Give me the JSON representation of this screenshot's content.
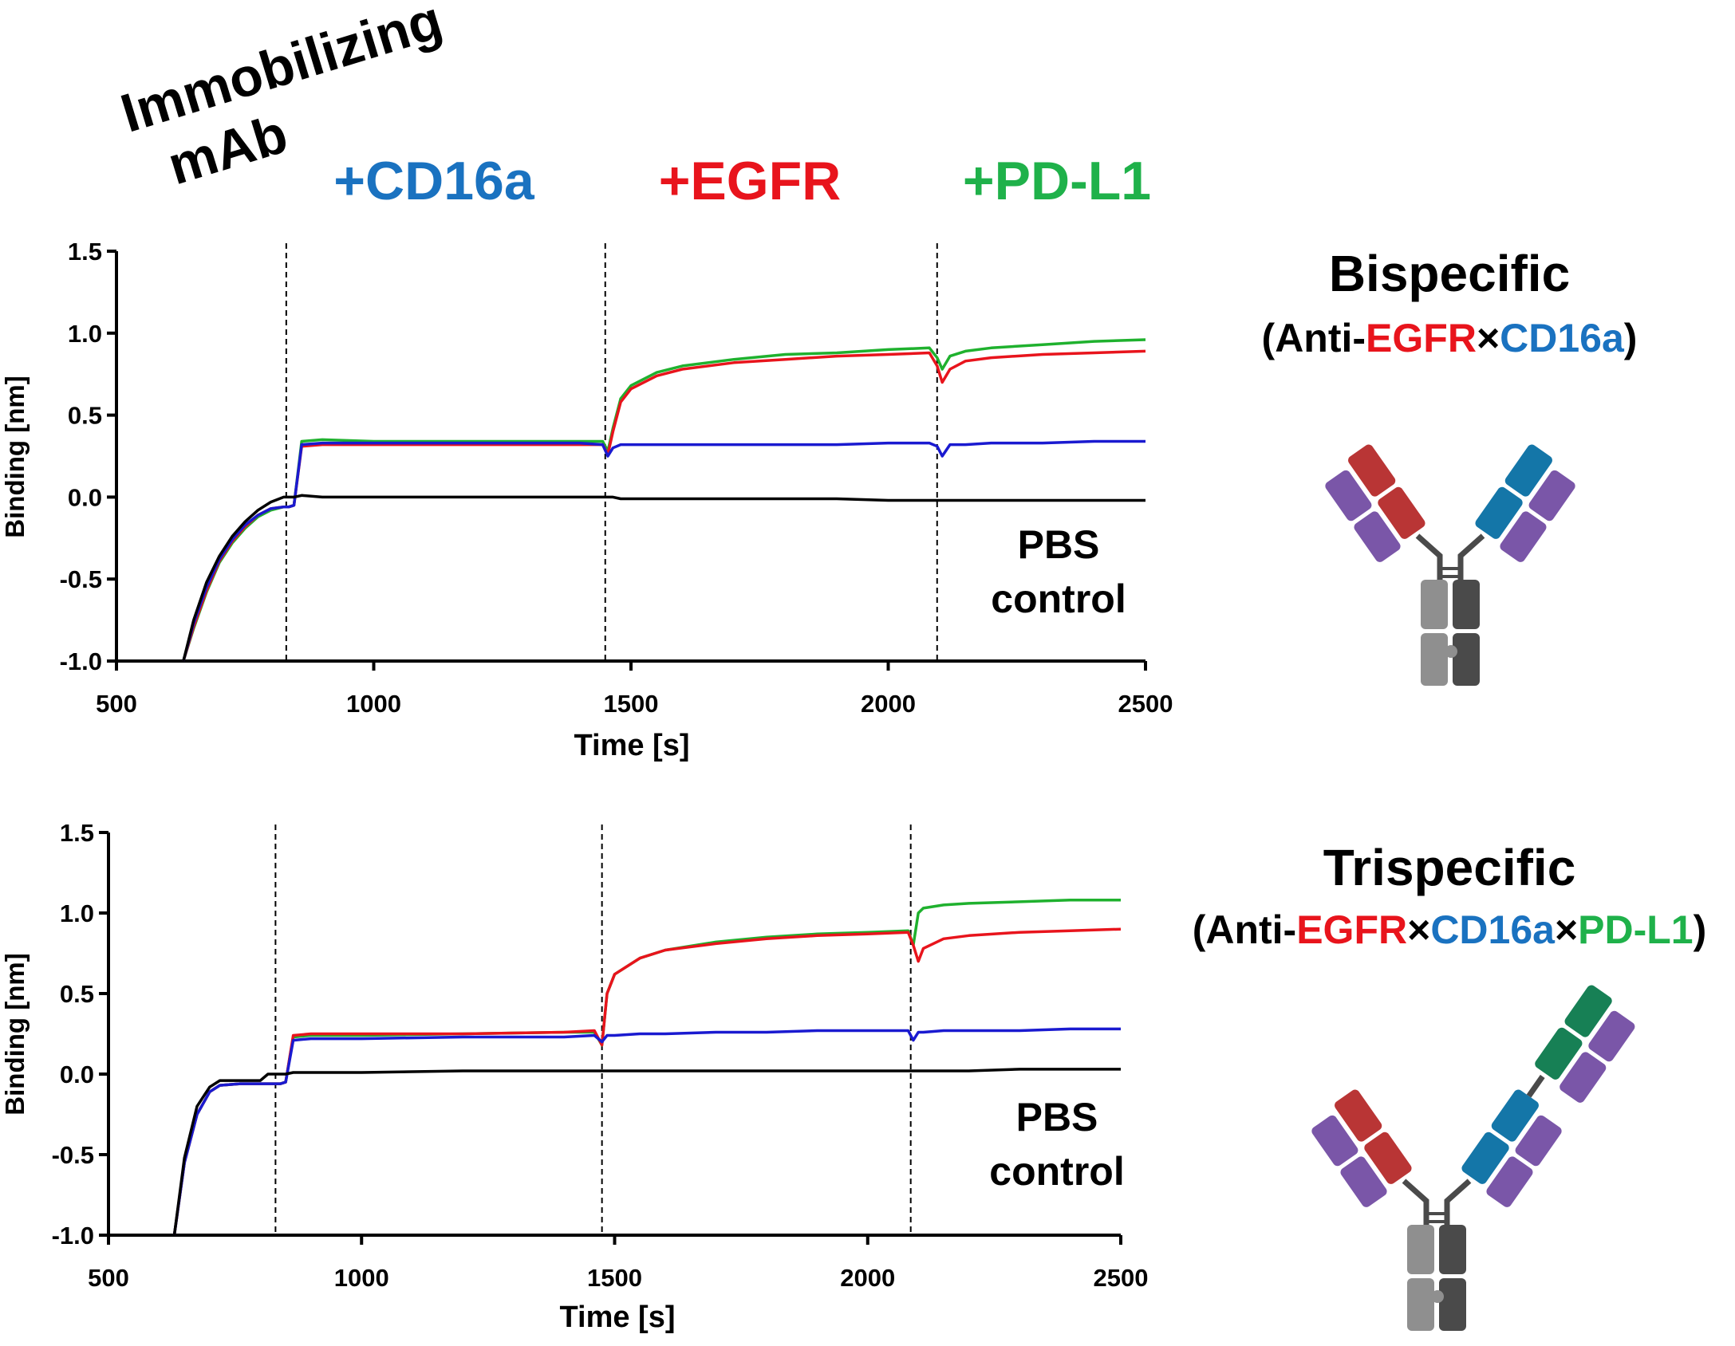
{
  "header": {
    "immobilizing": [
      "Immobilizing",
      "mAb"
    ],
    "steps": [
      {
        "text": "+CD16a",
        "color": "#1a72c0"
      },
      {
        "text": "+EGFR",
        "color": "#e8141c"
      },
      {
        "text": "+PD-L1",
        "color": "#1fb14a"
      }
    ]
  },
  "chart_data": [
    {
      "type": "line",
      "title": "Bispecific",
      "subtitle": [
        {
          "text": "(Anti-",
          "color": "#000000"
        },
        {
          "text": "EGFR",
          "color": "#e8141c"
        },
        {
          "text": "×",
          "color": "#000000"
        },
        {
          "text": "CD16a",
          "color": "#1a72c0"
        },
        {
          "text": ")",
          "color": "#000000"
        }
      ],
      "annotation": [
        "PBS",
        "control"
      ],
      "xlabel": "Time [s]",
      "ylabel": "Binding [nm]",
      "xlim": [
        500,
        2500
      ],
      "xticks": [
        500,
        1000,
        1500,
        2000,
        2500
      ],
      "ylim": [
        -1,
        1.5
      ],
      "yticks": [
        {
          "value": -1,
          "label": "-1.0"
        },
        -0.5,
        {
          "value": 0,
          "label": "0.0"
        },
        0.5,
        {
          "value": 1,
          "label": "1.0"
        },
        1.5
      ],
      "vlines": [
        830,
        1450,
        2095
      ],
      "x": [
        630,
        650,
        675,
        700,
        725,
        750,
        775,
        800,
        825,
        835,
        845,
        860,
        900,
        1000,
        1200,
        1400,
        1445,
        1455,
        1465,
        1480,
        1500,
        1550,
        1600,
        1700,
        1800,
        1900,
        2000,
        2080,
        2095,
        2105,
        2120,
        2150,
        2200,
        2300,
        2400,
        2500
      ],
      "series": [
        {
          "color": "#1fb12e",
          "values": [
            -1,
            -0.8,
            -0.58,
            -0.4,
            -0.28,
            -0.19,
            -0.12,
            -0.08,
            -0.06,
            -0.06,
            -0.05,
            0.34,
            0.35,
            0.34,
            0.34,
            0.34,
            0.34,
            0.28,
            0.42,
            0.6,
            0.68,
            0.76,
            0.8,
            0.84,
            0.87,
            0.88,
            0.9,
            0.91,
            0.85,
            0.78,
            0.86,
            0.89,
            0.91,
            0.93,
            0.95,
            0.96
          ]
        },
        {
          "color": "#e8141c",
          "values": [
            -1,
            -0.79,
            -0.57,
            -0.39,
            -0.27,
            -0.18,
            -0.11,
            -0.07,
            -0.06,
            -0.06,
            -0.05,
            0.31,
            0.32,
            0.32,
            0.32,
            0.32,
            0.32,
            0.26,
            0.4,
            0.58,
            0.66,
            0.74,
            0.78,
            0.82,
            0.84,
            0.86,
            0.87,
            0.88,
            0.8,
            0.7,
            0.78,
            0.83,
            0.85,
            0.87,
            0.88,
            0.89
          ]
        },
        {
          "color": "#1a1ad0",
          "values": [
            -1,
            -0.77,
            -0.55,
            -0.38,
            -0.26,
            -0.17,
            -0.11,
            -0.07,
            -0.06,
            -0.06,
            -0.05,
            0.32,
            0.33,
            0.33,
            0.33,
            0.33,
            0.32,
            0.25,
            0.3,
            0.32,
            0.32,
            0.32,
            0.32,
            0.32,
            0.32,
            0.32,
            0.33,
            0.33,
            0.31,
            0.25,
            0.32,
            0.32,
            0.33,
            0.33,
            0.34,
            0.34
          ]
        },
        {
          "color": "#000000",
          "values": [
            -1,
            -0.75,
            -0.52,
            -0.36,
            -0.24,
            -0.15,
            -0.08,
            -0.03,
            0.0,
            0.0,
            0.0,
            0.01,
            0.0,
            0.0,
            0.0,
            0.0,
            0.0,
            0.0,
            0.0,
            -0.01,
            -0.01,
            -0.01,
            -0.01,
            -0.01,
            -0.01,
            -0.01,
            -0.02,
            -0.02,
            -0.02,
            -0.02,
            -0.02,
            -0.02,
            -0.02,
            -0.02,
            -0.02,
            -0.02
          ]
        }
      ]
    },
    {
      "type": "line",
      "title": "Trispecific",
      "subtitle": [
        {
          "text": "(Anti-",
          "color": "#000000"
        },
        {
          "text": "EGFR",
          "color": "#e8141c"
        },
        {
          "text": "×",
          "color": "#000000"
        },
        {
          "text": "CD16a",
          "color": "#1a72c0"
        },
        {
          "text": "×",
          "color": "#000000"
        },
        {
          "text": "PD-L1",
          "color": "#1fb14a"
        },
        {
          "text": ")",
          "color": "#000000"
        }
      ],
      "annotation": [
        "PBS",
        "control"
      ],
      "xlabel": "Time [s]",
      "ylabel": "Binding [nm]",
      "xlim": [
        500,
        2500
      ],
      "xticks": [
        500,
        1000,
        1500,
        2000,
        2500
      ],
      "ylim": [
        -1,
        1.5
      ],
      "yticks": [
        {
          "value": -1,
          "label": "-1.0"
        },
        -0.5,
        {
          "value": 0,
          "label": "0.0"
        },
        0.5,
        {
          "value": 1,
          "label": "1.0"
        },
        1.5
      ],
      "vlines": [
        830,
        1475,
        2085
      ],
      "x": [
        630,
        650,
        675,
        700,
        720,
        760,
        800,
        815,
        840,
        850,
        865,
        900,
        1000,
        1200,
        1400,
        1460,
        1475,
        1485,
        1500,
        1550,
        1600,
        1700,
        1800,
        1900,
        2000,
        2080,
        2090,
        2100,
        2110,
        2150,
        2200,
        2300,
        2400,
        2500
      ],
      "series": [
        {
          "color": "#1fb12e",
          "values": [
            -1,
            -0.55,
            -0.25,
            -0.11,
            -0.07,
            -0.06,
            -0.06,
            -0.06,
            -0.06,
            -0.05,
            0.23,
            0.24,
            0.24,
            0.25,
            0.26,
            0.26,
            0.18,
            0.5,
            0.62,
            0.72,
            0.77,
            0.82,
            0.85,
            0.87,
            0.88,
            0.89,
            0.8,
            1.0,
            1.03,
            1.05,
            1.06,
            1.07,
            1.08,
            1.08
          ]
        },
        {
          "color": "#e8141c",
          "values": [
            -1,
            -0.55,
            -0.25,
            -0.11,
            -0.07,
            -0.06,
            -0.06,
            -0.06,
            -0.06,
            -0.05,
            0.24,
            0.25,
            0.25,
            0.25,
            0.26,
            0.27,
            0.18,
            0.5,
            0.62,
            0.72,
            0.77,
            0.81,
            0.84,
            0.86,
            0.87,
            0.88,
            0.8,
            0.7,
            0.78,
            0.84,
            0.86,
            0.88,
            0.89,
            0.9
          ]
        },
        {
          "color": "#1a1ad0",
          "values": [
            -1,
            -0.55,
            -0.25,
            -0.11,
            -0.07,
            -0.06,
            -0.06,
            -0.06,
            -0.06,
            -0.05,
            0.21,
            0.22,
            0.22,
            0.23,
            0.23,
            0.24,
            0.2,
            0.24,
            0.24,
            0.25,
            0.25,
            0.26,
            0.26,
            0.27,
            0.27,
            0.27,
            0.21,
            0.26,
            0.26,
            0.27,
            0.27,
            0.27,
            0.28,
            0.28
          ]
        },
        {
          "color": "#000000",
          "values": [
            -1,
            -0.52,
            -0.2,
            -0.08,
            -0.04,
            -0.04,
            -0.04,
            0.0,
            0.0,
            0.0,
            0.01,
            0.01,
            0.01,
            0.02,
            0.02,
            0.02,
            0.02,
            0.02,
            0.02,
            0.02,
            0.02,
            0.02,
            0.02,
            0.02,
            0.02,
            0.02,
            0.02,
            0.02,
            0.02,
            0.02,
            0.02,
            0.03,
            0.03,
            0.03
          ]
        }
      ]
    }
  ]
}
